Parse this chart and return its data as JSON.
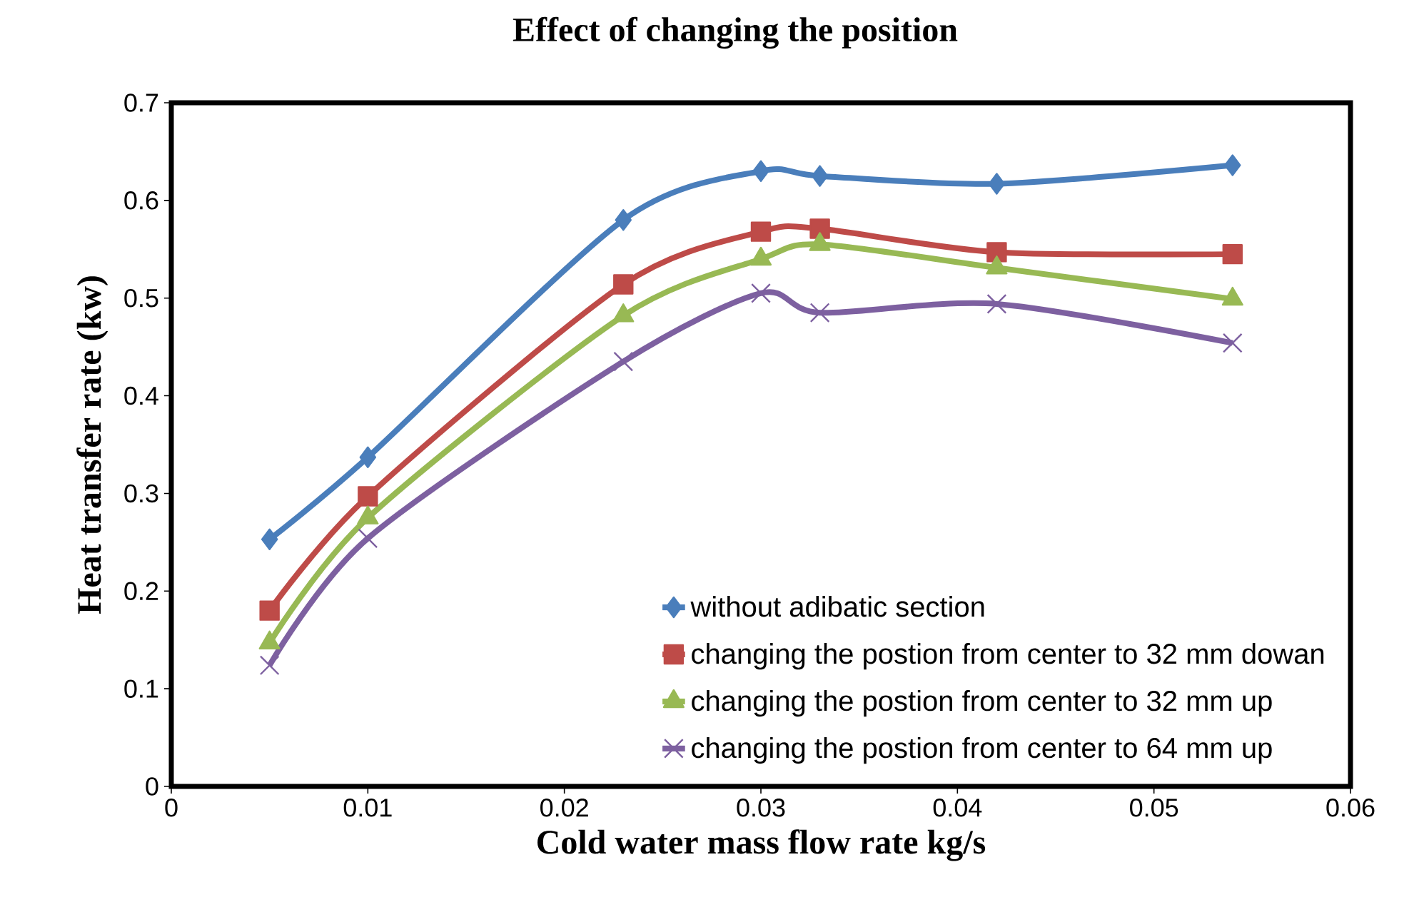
{
  "chart_data": {
    "type": "line",
    "title": "Effect of changing the position",
    "xlabel": "Cold water mass flow rate kg/s",
    "ylabel": "Heat transfer rate (kw)",
    "x": [
      0.005,
      0.01,
      0.023,
      0.03,
      0.033,
      0.042,
      0.054
    ],
    "series": [
      {
        "name": "without adibatic section",
        "color": "#4a7ebb",
        "marker": "diamond",
        "values": [
          0.253,
          0.337,
          0.58,
          0.63,
          0.625,
          0.617,
          0.636
        ]
      },
      {
        "name": "changing the postion from center to 32 mm dowan",
        "color": "#be4b48",
        "marker": "square",
        "values": [
          0.18,
          0.297,
          0.514,
          0.568,
          0.571,
          0.547,
          0.545
        ]
      },
      {
        "name": "changing the postion from center to 32 mm up",
        "color": "#98b954",
        "marker": "triangle",
        "values": [
          0.147,
          0.275,
          0.482,
          0.54,
          0.555,
          0.531,
          0.499
        ]
      },
      {
        "name": "changing the postion from center to 64 mm up",
        "color": "#7d60a0",
        "marker": "cross",
        "values": [
          0.124,
          0.254,
          0.435,
          0.505,
          0.485,
          0.494,
          0.454
        ]
      }
    ],
    "xlim": [
      0,
      0.06
    ],
    "xticks": [
      0,
      0.01,
      0.02,
      0.03,
      0.04,
      0.05,
      0.06
    ],
    "ylim": [
      0,
      0.7
    ],
    "yticks": [
      0,
      0.1,
      0.2,
      0.3,
      0.4,
      0.5,
      0.6,
      0.7
    ],
    "grid": false,
    "legend": "bottom right",
    "line_style": "solid"
  }
}
